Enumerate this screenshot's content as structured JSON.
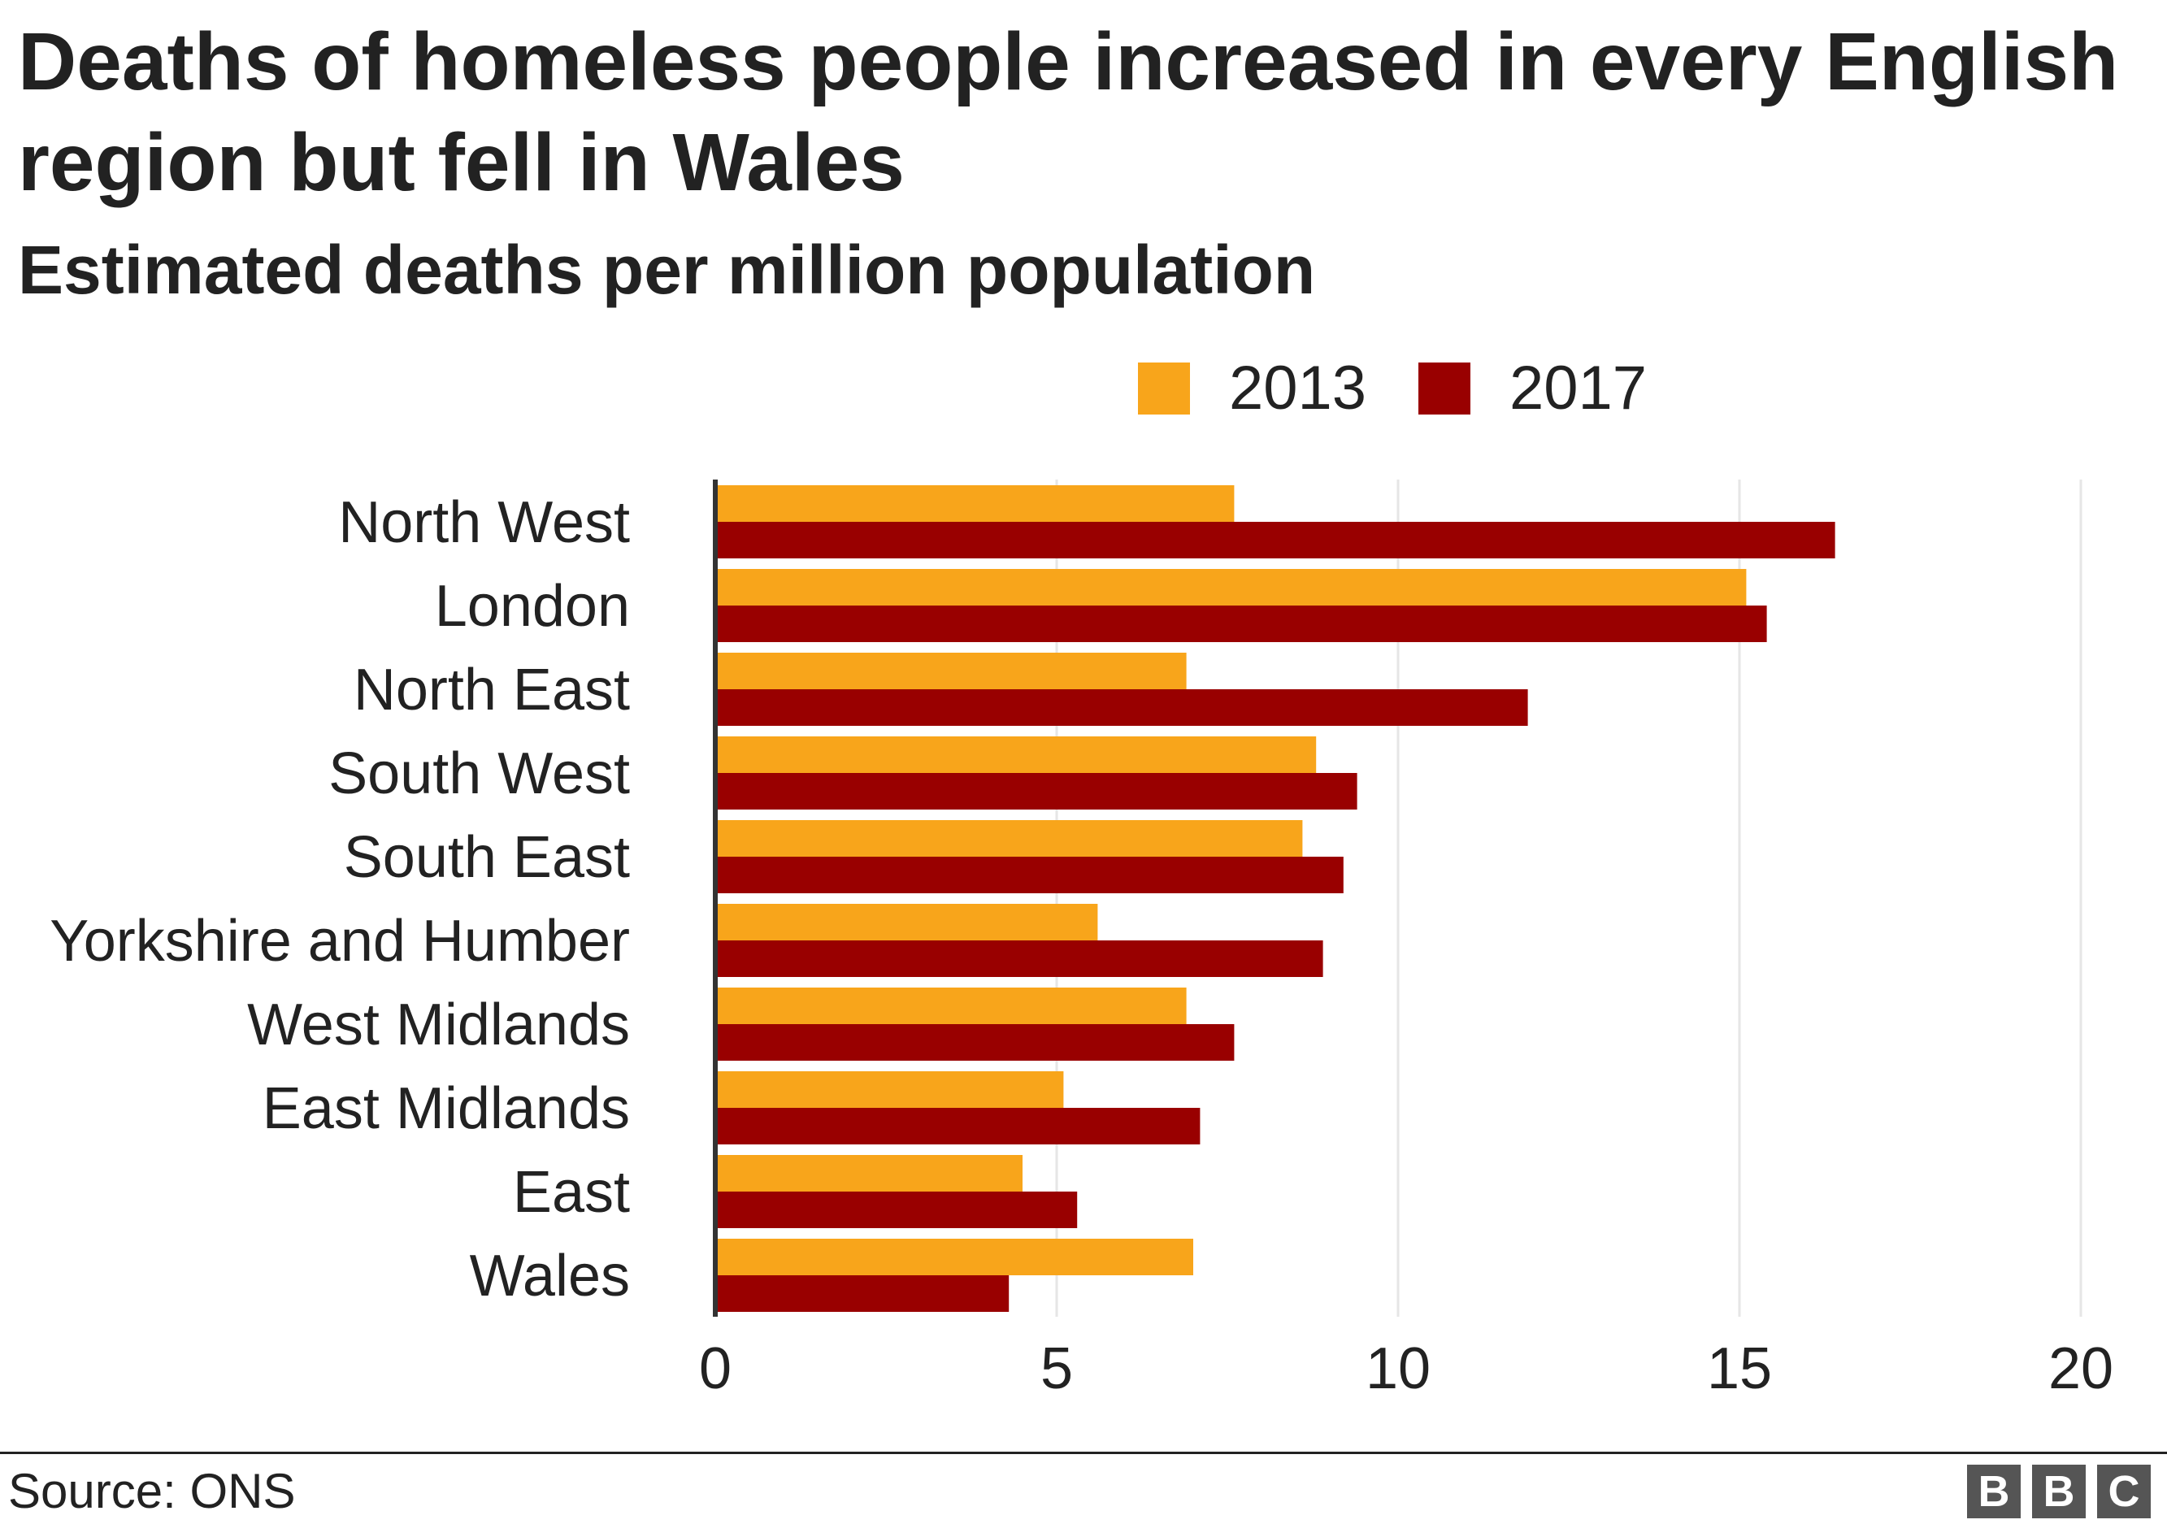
{
  "title": "Deaths of homeless people increased in every English region but fell in Wales",
  "subtitle": "Estimated deaths per million population",
  "source": "Source: ONS",
  "logo": {
    "letters": [
      "B",
      "B",
      "C"
    ]
  },
  "colors": {
    "series_2013": "#f8a51b",
    "series_2017": "#990000",
    "axis": "#333333",
    "grid": "#e6e6e6",
    "text": "#222222"
  },
  "chart_data": {
    "type": "bar",
    "orientation": "horizontal",
    "categories": [
      "North West",
      "London",
      "North East",
      "South West",
      "South East",
      "Yorkshire and Humber",
      "West Midlands",
      "East Midlands",
      "East",
      "Wales"
    ],
    "series": [
      {
        "name": "2013",
        "values": [
          7.6,
          15.1,
          6.9,
          8.8,
          8.6,
          5.6,
          6.9,
          5.1,
          4.5,
          7.0
        ]
      },
      {
        "name": "2017",
        "values": [
          16.4,
          15.4,
          11.9,
          9.4,
          9.2,
          8.9,
          7.6,
          7.1,
          5.3,
          4.3
        ]
      }
    ],
    "xlim": [
      0,
      20
    ],
    "xticks": [
      "0",
      "5",
      "10",
      "15",
      "20"
    ],
    "grid": true,
    "legend": "top"
  }
}
